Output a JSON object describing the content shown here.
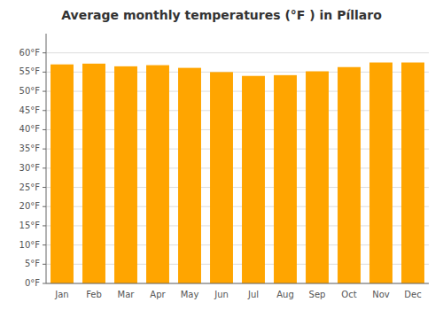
{
  "chart_data": {
    "type": "bar",
    "title": "Average monthly temperatures (°F ) in Píllaro",
    "categories": [
      "Jan",
      "Feb",
      "Mar",
      "Apr",
      "May",
      "Jun",
      "Jul",
      "Aug",
      "Sep",
      "Oct",
      "Nov",
      "Dec"
    ],
    "values": [
      57.0,
      57.2,
      56.5,
      56.8,
      56.1,
      55.0,
      54.0,
      54.2,
      55.2,
      56.3,
      57.5,
      57.5
    ],
    "color": "#FFA500",
    "ylim": [
      0,
      65
    ],
    "yticks": [
      {
        "value": 0,
        "label": "0°F"
      },
      {
        "value": 5,
        "label": "5°F"
      },
      {
        "value": 10,
        "label": "10°F"
      },
      {
        "value": 15,
        "label": "15°F"
      },
      {
        "value": 20,
        "label": "20°F"
      },
      {
        "value": 25,
        "label": "25°F"
      },
      {
        "value": 30,
        "label": "30°F"
      },
      {
        "value": 35,
        "label": "35°F"
      },
      {
        "value": 40,
        "label": "40°F"
      },
      {
        "value": 45,
        "label": "45°F"
      },
      {
        "value": 50,
        "label": "50°F"
      },
      {
        "value": 55,
        "label": "55°F"
      },
      {
        "value": 60,
        "label": "60°F"
      }
    ],
    "grid": true
  }
}
